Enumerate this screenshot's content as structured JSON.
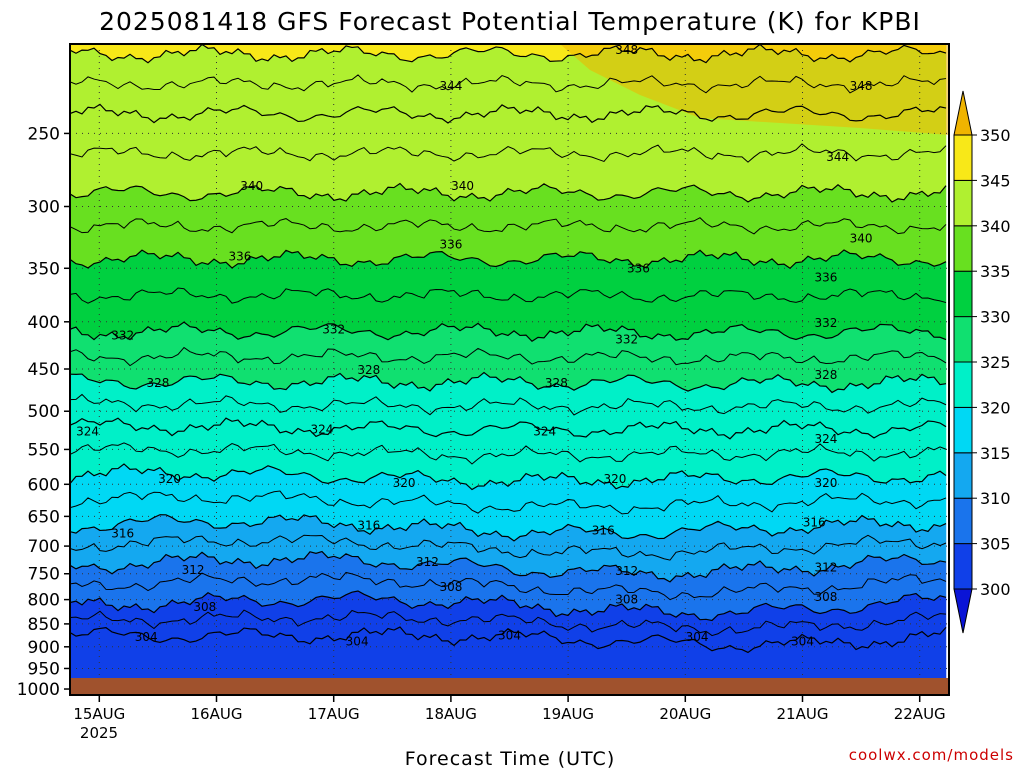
{
  "chart_data": {
    "type": "heatmap",
    "title": "2025081418 GFS Forecast Potential Temperature (K) for KPBI",
    "xlabel": "Forecast Time (UTC)",
    "credit": "coolwx.com/models",
    "x_ticks": [
      "15AUG",
      "16AUG",
      "17AUG",
      "18AUG",
      "19AUG",
      "20AUG",
      "21AUG",
      "22AUG"
    ],
    "x_year": "2025",
    "x_range": [
      -0.25,
      7.25
    ],
    "y_scale": "log",
    "y_ticks": [
      250,
      300,
      350,
      400,
      450,
      500,
      550,
      600,
      650,
      700,
      750,
      800,
      850,
      900,
      950,
      1000
    ],
    "y_range": [
      200,
      1015
    ],
    "colorbar": {
      "ticks": [
        300,
        305,
        310,
        315,
        320,
        325,
        330,
        335,
        340,
        345,
        350
      ],
      "colors": [
        "#0a14d6",
        "#1040e8",
        "#1a74ec",
        "#14a8f0",
        "#00d8f4",
        "#00f0c8",
        "#10e070",
        "#00d040",
        "#68e020",
        "#b0f030",
        "#f8e818",
        "#f0b400"
      ]
    },
    "contour_levels": [
      {
        "level": 304,
        "p": 880
      },
      {
        "level": 308,
        "p": 810
      },
      {
        "level": 312,
        "p": 735
      },
      {
        "level": 316,
        "p": 668
      },
      {
        "level": 320,
        "p": 590
      },
      {
        "level": 324,
        "p": 522
      },
      {
        "level": 328,
        "p": 465
      },
      {
        "level": 332,
        "p": 410
      },
      {
        "level": 336,
        "p": 342
      },
      {
        "level": 340,
        "p": 290
      },
      {
        "level": 344,
        "p": 238
      },
      {
        "level": 348,
        "p": 205
      }
    ],
    "contour_labels": [
      {
        "text": "304",
        "day": 0.4,
        "p": 878
      },
      {
        "text": "304",
        "day": 2.2,
        "p": 888
      },
      {
        "text": "304",
        "day": 3.5,
        "p": 875
      },
      {
        "text": "304",
        "day": 5.1,
        "p": 878
      },
      {
        "text": "304",
        "day": 6.0,
        "p": 888
      },
      {
        "text": "308",
        "day": 0.9,
        "p": 815
      },
      {
        "text": "308",
        "day": 3.0,
        "p": 775
      },
      {
        "text": "308",
        "day": 4.5,
        "p": 800
      },
      {
        "text": "308",
        "day": 6.2,
        "p": 795
      },
      {
        "text": "312",
        "day": 0.8,
        "p": 743
      },
      {
        "text": "312",
        "day": 2.8,
        "p": 728
      },
      {
        "text": "312",
        "day": 4.5,
        "p": 745
      },
      {
        "text": "312",
        "day": 6.2,
        "p": 738
      },
      {
        "text": "316",
        "day": 0.2,
        "p": 678
      },
      {
        "text": "316",
        "day": 2.3,
        "p": 665
      },
      {
        "text": "316",
        "day": 4.3,
        "p": 673
      },
      {
        "text": "316",
        "day": 6.1,
        "p": 660
      },
      {
        "text": "320",
        "day": 0.6,
        "p": 592
      },
      {
        "text": "320",
        "day": 2.6,
        "p": 598
      },
      {
        "text": "320",
        "day": 4.4,
        "p": 592
      },
      {
        "text": "320",
        "day": 6.2,
        "p": 598
      },
      {
        "text": "324",
        "day": -0.1,
        "p": 526
      },
      {
        "text": "324",
        "day": 1.9,
        "p": 523
      },
      {
        "text": "324",
        "day": 3.8,
        "p": 526
      },
      {
        "text": "324",
        "day": 6.2,
        "p": 536
      },
      {
        "text": "328",
        "day": 0.5,
        "p": 466
      },
      {
        "text": "328",
        "day": 2.3,
        "p": 451
      },
      {
        "text": "328",
        "day": 3.9,
        "p": 466
      },
      {
        "text": "328",
        "day": 6.2,
        "p": 457
      },
      {
        "text": "332",
        "day": 0.2,
        "p": 414
      },
      {
        "text": "332",
        "day": 2.0,
        "p": 408
      },
      {
        "text": "332",
        "day": 4.5,
        "p": 418
      },
      {
        "text": "332",
        "day": 6.2,
        "p": 401
      },
      {
        "text": "336",
        "day": 1.2,
        "p": 340
      },
      {
        "text": "336",
        "day": 3.0,
        "p": 330
      },
      {
        "text": "336",
        "day": 4.6,
        "p": 350
      },
      {
        "text": "336",
        "day": 6.2,
        "p": 358
      },
      {
        "text": "340",
        "day": 1.3,
        "p": 285
      },
      {
        "text": "340",
        "day": 3.1,
        "p": 285
      },
      {
        "text": "340",
        "day": 6.5,
        "p": 325
      },
      {
        "text": "344",
        "day": 3.0,
        "p": 222
      },
      {
        "text": "344",
        "day": 6.3,
        "p": 265
      },
      {
        "text": "348",
        "day": 4.5,
        "p": 203
      },
      {
        "text": "348",
        "day": 6.5,
        "p": 222
      }
    ]
  }
}
